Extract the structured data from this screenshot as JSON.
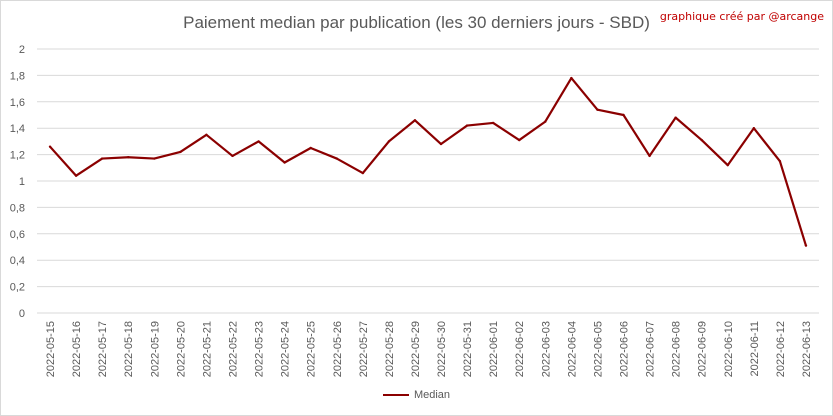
{
  "chart_data": {
    "type": "line",
    "title": "Paiement median par publication (les 30 derniers jours - SBD)",
    "credit": "graphique créé par @arcange",
    "categories": [
      "2022-05-15",
      "2022-05-16",
      "2022-05-17",
      "2022-05-18",
      "2022-05-19",
      "2022-05-20",
      "2022-05-21",
      "2022-05-22",
      "2022-05-23",
      "2022-05-24",
      "2022-05-25",
      "2022-05-26",
      "2022-05-27",
      "2022-05-28",
      "2022-05-29",
      "2022-05-30",
      "2022-05-31",
      "2022-06-01",
      "2022-06-02",
      "2022-06-03",
      "2022-06-04",
      "2022-06-05",
      "2022-06-06",
      "2022-06-07",
      "2022-06-08",
      "2022-06-09",
      "2022-06-10",
      "2022-06-11",
      "2022-06-12",
      "2022-06-13"
    ],
    "series": [
      {
        "name": "Median",
        "color": "#8b0000",
        "values": [
          1.26,
          1.04,
          1.17,
          1.18,
          1.17,
          1.22,
          1.35,
          1.19,
          1.3,
          1.14,
          1.25,
          1.17,
          1.06,
          1.3,
          1.46,
          1.28,
          1.42,
          1.44,
          1.31,
          1.45,
          1.78,
          1.54,
          1.5,
          1.19,
          1.48,
          1.31,
          1.12,
          1.4,
          1.15,
          0.51
        ]
      }
    ],
    "ylim": [
      0,
      2
    ],
    "ytick_labels": [
      "0",
      "0,2",
      "0,4",
      "0,6",
      "0,8",
      "1",
      "1,2",
      "1,4",
      "1,6",
      "1,8",
      "2"
    ],
    "grid": true,
    "legend_position": "bottom"
  }
}
